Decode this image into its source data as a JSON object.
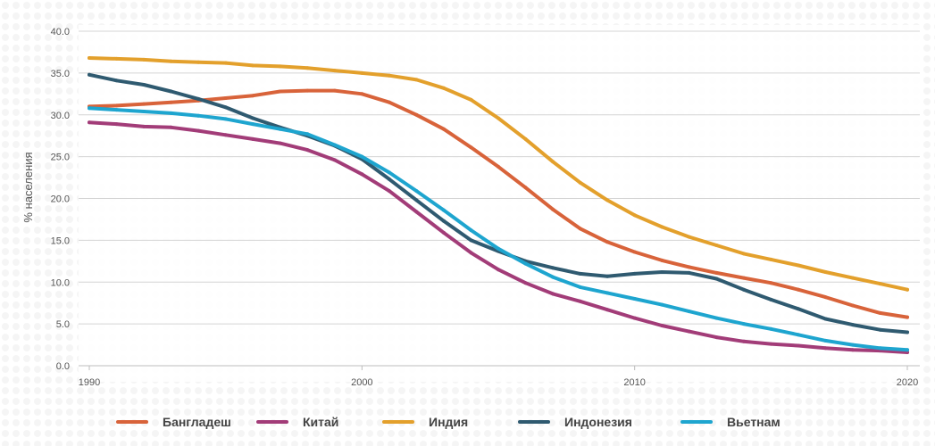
{
  "chart_data": {
    "type": "line",
    "title": "",
    "xlabel": "",
    "ylabel": "% населения",
    "xlim": [
      1990,
      2020
    ],
    "ylim": [
      0,
      40
    ],
    "grid": true,
    "legend_position": "bottom",
    "x_ticks": [
      1990,
      2000,
      2010,
      2020
    ],
    "y_ticks": [
      "0.0",
      "5.0",
      "10.0",
      "15.0",
      "20.0",
      "25.0",
      "30.0",
      "35.0",
      "40.0"
    ],
    "x": [
      1990,
      1991,
      1992,
      1993,
      1994,
      1995,
      1996,
      1997,
      1998,
      1999,
      2000,
      2001,
      2002,
      2003,
      2004,
      2005,
      2006,
      2007,
      2008,
      2009,
      2010,
      2011,
      2012,
      2013,
      2014,
      2015,
      2016,
      2017,
      2018,
      2019,
      2020
    ],
    "series": [
      {
        "name": "Бангладеш",
        "color": "#d8633a",
        "values": [
          31.0,
          31.1,
          31.3,
          31.5,
          31.7,
          32.0,
          32.3,
          32.8,
          32.9,
          32.9,
          32.5,
          31.5,
          30.0,
          28.3,
          26.1,
          23.8,
          21.3,
          18.7,
          16.4,
          14.8,
          13.6,
          12.6,
          11.8,
          11.1,
          10.5,
          9.9,
          9.1,
          8.2,
          7.2,
          6.3,
          5.8
        ]
      },
      {
        "name": "Китай",
        "color": "#a23c78",
        "values": [
          29.1,
          28.9,
          28.6,
          28.5,
          28.1,
          27.6,
          27.1,
          26.6,
          25.8,
          24.6,
          22.9,
          20.9,
          18.4,
          15.9,
          13.5,
          11.5,
          9.9,
          8.6,
          7.7,
          6.7,
          5.7,
          4.8,
          4.1,
          3.4,
          2.9,
          2.6,
          2.4,
          2.1,
          1.9,
          1.8,
          1.6
        ]
      },
      {
        "name": "Индия",
        "color": "#e3a02c",
        "values": [
          36.8,
          36.7,
          36.6,
          36.4,
          36.3,
          36.2,
          35.9,
          35.8,
          35.6,
          35.3,
          35.0,
          34.7,
          34.2,
          33.2,
          31.8,
          29.6,
          27.1,
          24.4,
          21.9,
          19.8,
          18.0,
          16.6,
          15.4,
          14.4,
          13.4,
          12.7,
          12.0,
          11.2,
          10.5,
          9.8,
          9.1
        ]
      },
      {
        "name": "Индонезия",
        "color": "#2f5a70",
        "values": [
          34.8,
          34.1,
          33.6,
          32.8,
          31.9,
          30.9,
          29.6,
          28.5,
          27.5,
          26.3,
          24.7,
          22.3,
          19.8,
          17.3,
          15.0,
          13.7,
          12.5,
          11.7,
          11.0,
          10.7,
          11.0,
          11.2,
          11.1,
          10.4,
          9.1,
          7.9,
          6.8,
          5.6,
          4.9,
          4.3,
          4.0
        ]
      },
      {
        "name": "Вьетнам",
        "color": "#1ea5cf",
        "values": [
          30.8,
          30.6,
          30.4,
          30.2,
          29.9,
          29.5,
          28.9,
          28.3,
          27.7,
          26.4,
          25.0,
          23.1,
          20.9,
          18.6,
          16.2,
          14.0,
          12.2,
          10.6,
          9.4,
          8.7,
          8.0,
          7.3,
          6.5,
          5.7,
          5.0,
          4.4,
          3.7,
          3.0,
          2.5,
          2.1,
          1.9
        ]
      }
    ]
  },
  "legend": {
    "items": [
      {
        "label": "Бангладеш",
        "color": "#d8633a"
      },
      {
        "label": "Китай",
        "color": "#a23c78"
      },
      {
        "label": "Индия",
        "color": "#e3a02c"
      },
      {
        "label": "Индонезия",
        "color": "#2f5a70"
      },
      {
        "label": "Вьетнам",
        "color": "#1ea5cf"
      }
    ]
  }
}
